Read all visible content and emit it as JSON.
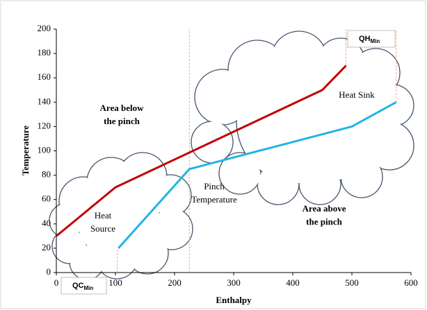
{
  "chart_data": {
    "type": "line",
    "x_label": "Enthalpy",
    "y_label": "Temperature",
    "xlim": [
      0,
      600
    ],
    "xticks": [
      0,
      100,
      200,
      300,
      400,
      500,
      600
    ],
    "ylim": [
      0,
      200
    ],
    "yticks": [
      0,
      20,
      40,
      60,
      80,
      100,
      120,
      140,
      160,
      180,
      200
    ],
    "grid": false,
    "series": [
      {
        "color": "#c00000",
        "x": [
          0,
          100,
          450,
          490
        ],
        "values": [
          30,
          70,
          150,
          170
        ]
      },
      {
        "color": "#1fb4e6",
        "x": [
          105,
          225,
          500,
          575
        ],
        "values": [
          20,
          85,
          120,
          140
        ]
      }
    ],
    "reference_lines": [
      {
        "x": 103,
        "y": [
          0,
          20
        ]
      },
      {
        "x": 225,
        "y": [
          0,
          200
        ]
      },
      {
        "x": 490,
        "y": [
          170,
          200
        ]
      },
      {
        "x": 575,
        "y": [
          140,
          200
        ]
      }
    ],
    "reference_color": "#f4a582",
    "annotations": [
      {
        "lines": [
          "Area below",
          "the pinch"
        ]
      },
      {
        "lines": [
          "Heat Sink"
        ]
      },
      {
        "lines": [
          "Pinch",
          "Temperature"
        ]
      },
      {
        "lines": [
          "Area above",
          "the pinch"
        ]
      },
      {
        "lines": [
          "Heat",
          "Source"
        ]
      }
    ],
    "qh_label": {
      "main": "QH",
      "sub": "Min"
    },
    "qc_label": {
      "main": "QC",
      "sub": "Min"
    }
  }
}
